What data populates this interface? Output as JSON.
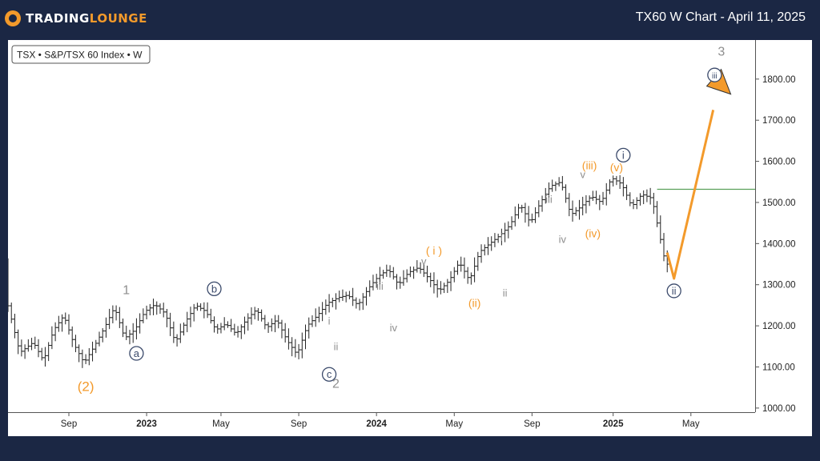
{
  "header": {
    "logo_text_1": "TRADING",
    "logo_text_2": "LOUNGE",
    "title": "TX60 W Chart - April 11, 2025"
  },
  "colors": {
    "background": "#1b2744",
    "accent": "#f39a2b",
    "wave_gray": "#8e8e8e",
    "wave_navy": "#3b4a6b",
    "bar": "#222222",
    "level_line": "#5aa05a"
  },
  "chart_data": {
    "type": "ohlc",
    "symbol_label": "TSX • S&P/TSX 60 Index • W",
    "y_axis": {
      "ticks": [
        "1000.00",
        "1100.00",
        "1200.00",
        "1300.00",
        "1400.00",
        "1500.00",
        "1600.00",
        "1700.00",
        "1800.00"
      ],
      "range": [
        990,
        1895
      ]
    },
    "x_axis": {
      "ticks": [
        {
          "label": "Sep",
          "bold": false
        },
        {
          "label": "2023",
          "bold": true
        },
        {
          "label": "May",
          "bold": false
        },
        {
          "label": "Sep",
          "bold": false
        },
        {
          "label": "2024",
          "bold": true
        },
        {
          "label": "May",
          "bold": false
        },
        {
          "label": "Sep",
          "bold": false
        },
        {
          "label": "2025",
          "bold": true
        },
        {
          "label": "May",
          "bold": false
        }
      ]
    },
    "price_path": [
      [
        0,
        1265
      ],
      [
        4,
        1135
      ],
      [
        8,
        1160
      ],
      [
        11,
        1115
      ],
      [
        14,
        1190
      ],
      [
        17,
        1225
      ],
      [
        20,
        1155
      ],
      [
        23,
        1110
      ],
      [
        26,
        1150
      ],
      [
        29,
        1195
      ],
      [
        32,
        1245
      ],
      [
        35,
        1170
      ],
      [
        38,
        1190
      ],
      [
        41,
        1235
      ],
      [
        44,
        1252
      ],
      [
        47,
        1230
      ],
      [
        50,
        1160
      ],
      [
        53,
        1210
      ],
      [
        56,
        1250
      ],
      [
        59,
        1235
      ],
      [
        62,
        1190
      ],
      [
        65,
        1205
      ],
      [
        68,
        1180
      ],
      [
        71,
        1215
      ],
      [
        74,
        1240
      ],
      [
        77,
        1195
      ],
      [
        80,
        1215
      ],
      [
        83,
        1165
      ],
      [
        86,
        1130
      ],
      [
        89,
        1200
      ],
      [
        92,
        1225
      ],
      [
        95,
        1255
      ],
      [
        98,
        1268
      ],
      [
        101,
        1275
      ],
      [
        104,
        1250
      ],
      [
        107,
        1290
      ],
      [
        110,
        1320
      ],
      [
        113,
        1338
      ],
      [
        116,
        1300
      ],
      [
        119,
        1330
      ],
      [
        122,
        1342
      ],
      [
        125,
        1315
      ],
      [
        128,
        1285
      ],
      [
        131,
        1310
      ],
      [
        134,
        1355
      ],
      [
        137,
        1310
      ],
      [
        140,
        1380
      ],
      [
        143,
        1400
      ],
      [
        146,
        1420
      ],
      [
        149,
        1445
      ],
      [
        152,
        1495
      ],
      [
        155,
        1450
      ],
      [
        158,
        1500
      ],
      [
        161,
        1540
      ],
      [
        164,
        1550
      ],
      [
        167,
        1470
      ],
      [
        170,
        1490
      ],
      [
        173,
        1515
      ],
      [
        176,
        1500
      ],
      [
        179,
        1560
      ],
      [
        182,
        1545
      ],
      [
        185,
        1490
      ],
      [
        188,
        1520
      ],
      [
        191,
        1510
      ],
      [
        193,
        1430
      ],
      [
        195,
        1350
      ]
    ],
    "level_line": 1532,
    "projection": [
      [
        195,
        1378
      ],
      [
        197,
        1315
      ],
      [
        210,
        1775
      ]
    ],
    "wave_labels": [
      {
        "text": "(2)",
        "t": 23,
        "p": 1053,
        "color": "orange",
        "style": "paren"
      },
      {
        "text": "1",
        "t": 35,
        "p": 1288,
        "color": "gray",
        "style": "plain"
      },
      {
        "text": "a",
        "t": 38,
        "p": 1133,
        "color": "navy",
        "style": "circle"
      },
      {
        "text": "b",
        "t": 61,
        "p": 1290,
        "color": "navy",
        "style": "circle"
      },
      {
        "text": "c",
        "t": 95,
        "p": 1082,
        "color": "navy",
        "style": "circle"
      },
      {
        "text": "2",
        "t": 97,
        "p": 1060,
        "color": "gray",
        "style": "plain"
      },
      {
        "text": "i",
        "t": 95,
        "p": 1212,
        "color": "gray",
        "style": "small"
      },
      {
        "text": "ii",
        "t": 97,
        "p": 1150,
        "color": "gray",
        "style": "small"
      },
      {
        "text": "iii",
        "t": 110,
        "p": 1297,
        "color": "gray",
        "style": "small"
      },
      {
        "text": "iv",
        "t": 114,
        "p": 1195,
        "color": "gray",
        "style": "small"
      },
      {
        "text": "v",
        "t": 123,
        "p": 1357,
        "color": "gray",
        "style": "small"
      },
      {
        "text": "( i )",
        "t": 126,
        "p": 1383,
        "color": "orange",
        "style": "paren-small"
      },
      {
        "text": "(ii)",
        "t": 138,
        "p": 1255,
        "color": "orange",
        "style": "paren-small"
      },
      {
        "text": "i",
        "t": 146,
        "p": 1415,
        "color": "gray",
        "style": "small"
      },
      {
        "text": "ii",
        "t": 147,
        "p": 1280,
        "color": "gray",
        "style": "small"
      },
      {
        "text": "iii",
        "t": 160,
        "p": 1508,
        "color": "gray",
        "style": "small"
      },
      {
        "text": "iv",
        "t": 164,
        "p": 1410,
        "color": "gray",
        "style": "small"
      },
      {
        "text": "v",
        "t": 170,
        "p": 1568,
        "color": "gray",
        "style": "small"
      },
      {
        "text": "(iii)",
        "t": 172,
        "p": 1590,
        "color": "orange",
        "style": "paren-small"
      },
      {
        "text": "(iv)",
        "t": 173,
        "p": 1425,
        "color": "orange",
        "style": "paren-small"
      },
      {
        "text": "(v)",
        "t": 180,
        "p": 1585,
        "color": "orange",
        "style": "paren-small"
      },
      {
        "text": "i",
        "t": 182,
        "p": 1615,
        "color": "navy",
        "style": "circle"
      },
      {
        "text": "ii",
        "t": 197,
        "p": 1285,
        "color": "navy",
        "style": "circle"
      },
      {
        "text": "iii",
        "t": 209,
        "p": 1810,
        "color": "navy",
        "style": "circle"
      },
      {
        "text": "3",
        "t": 211,
        "p": 1868,
        "color": "gray",
        "style": "plain"
      }
    ]
  }
}
